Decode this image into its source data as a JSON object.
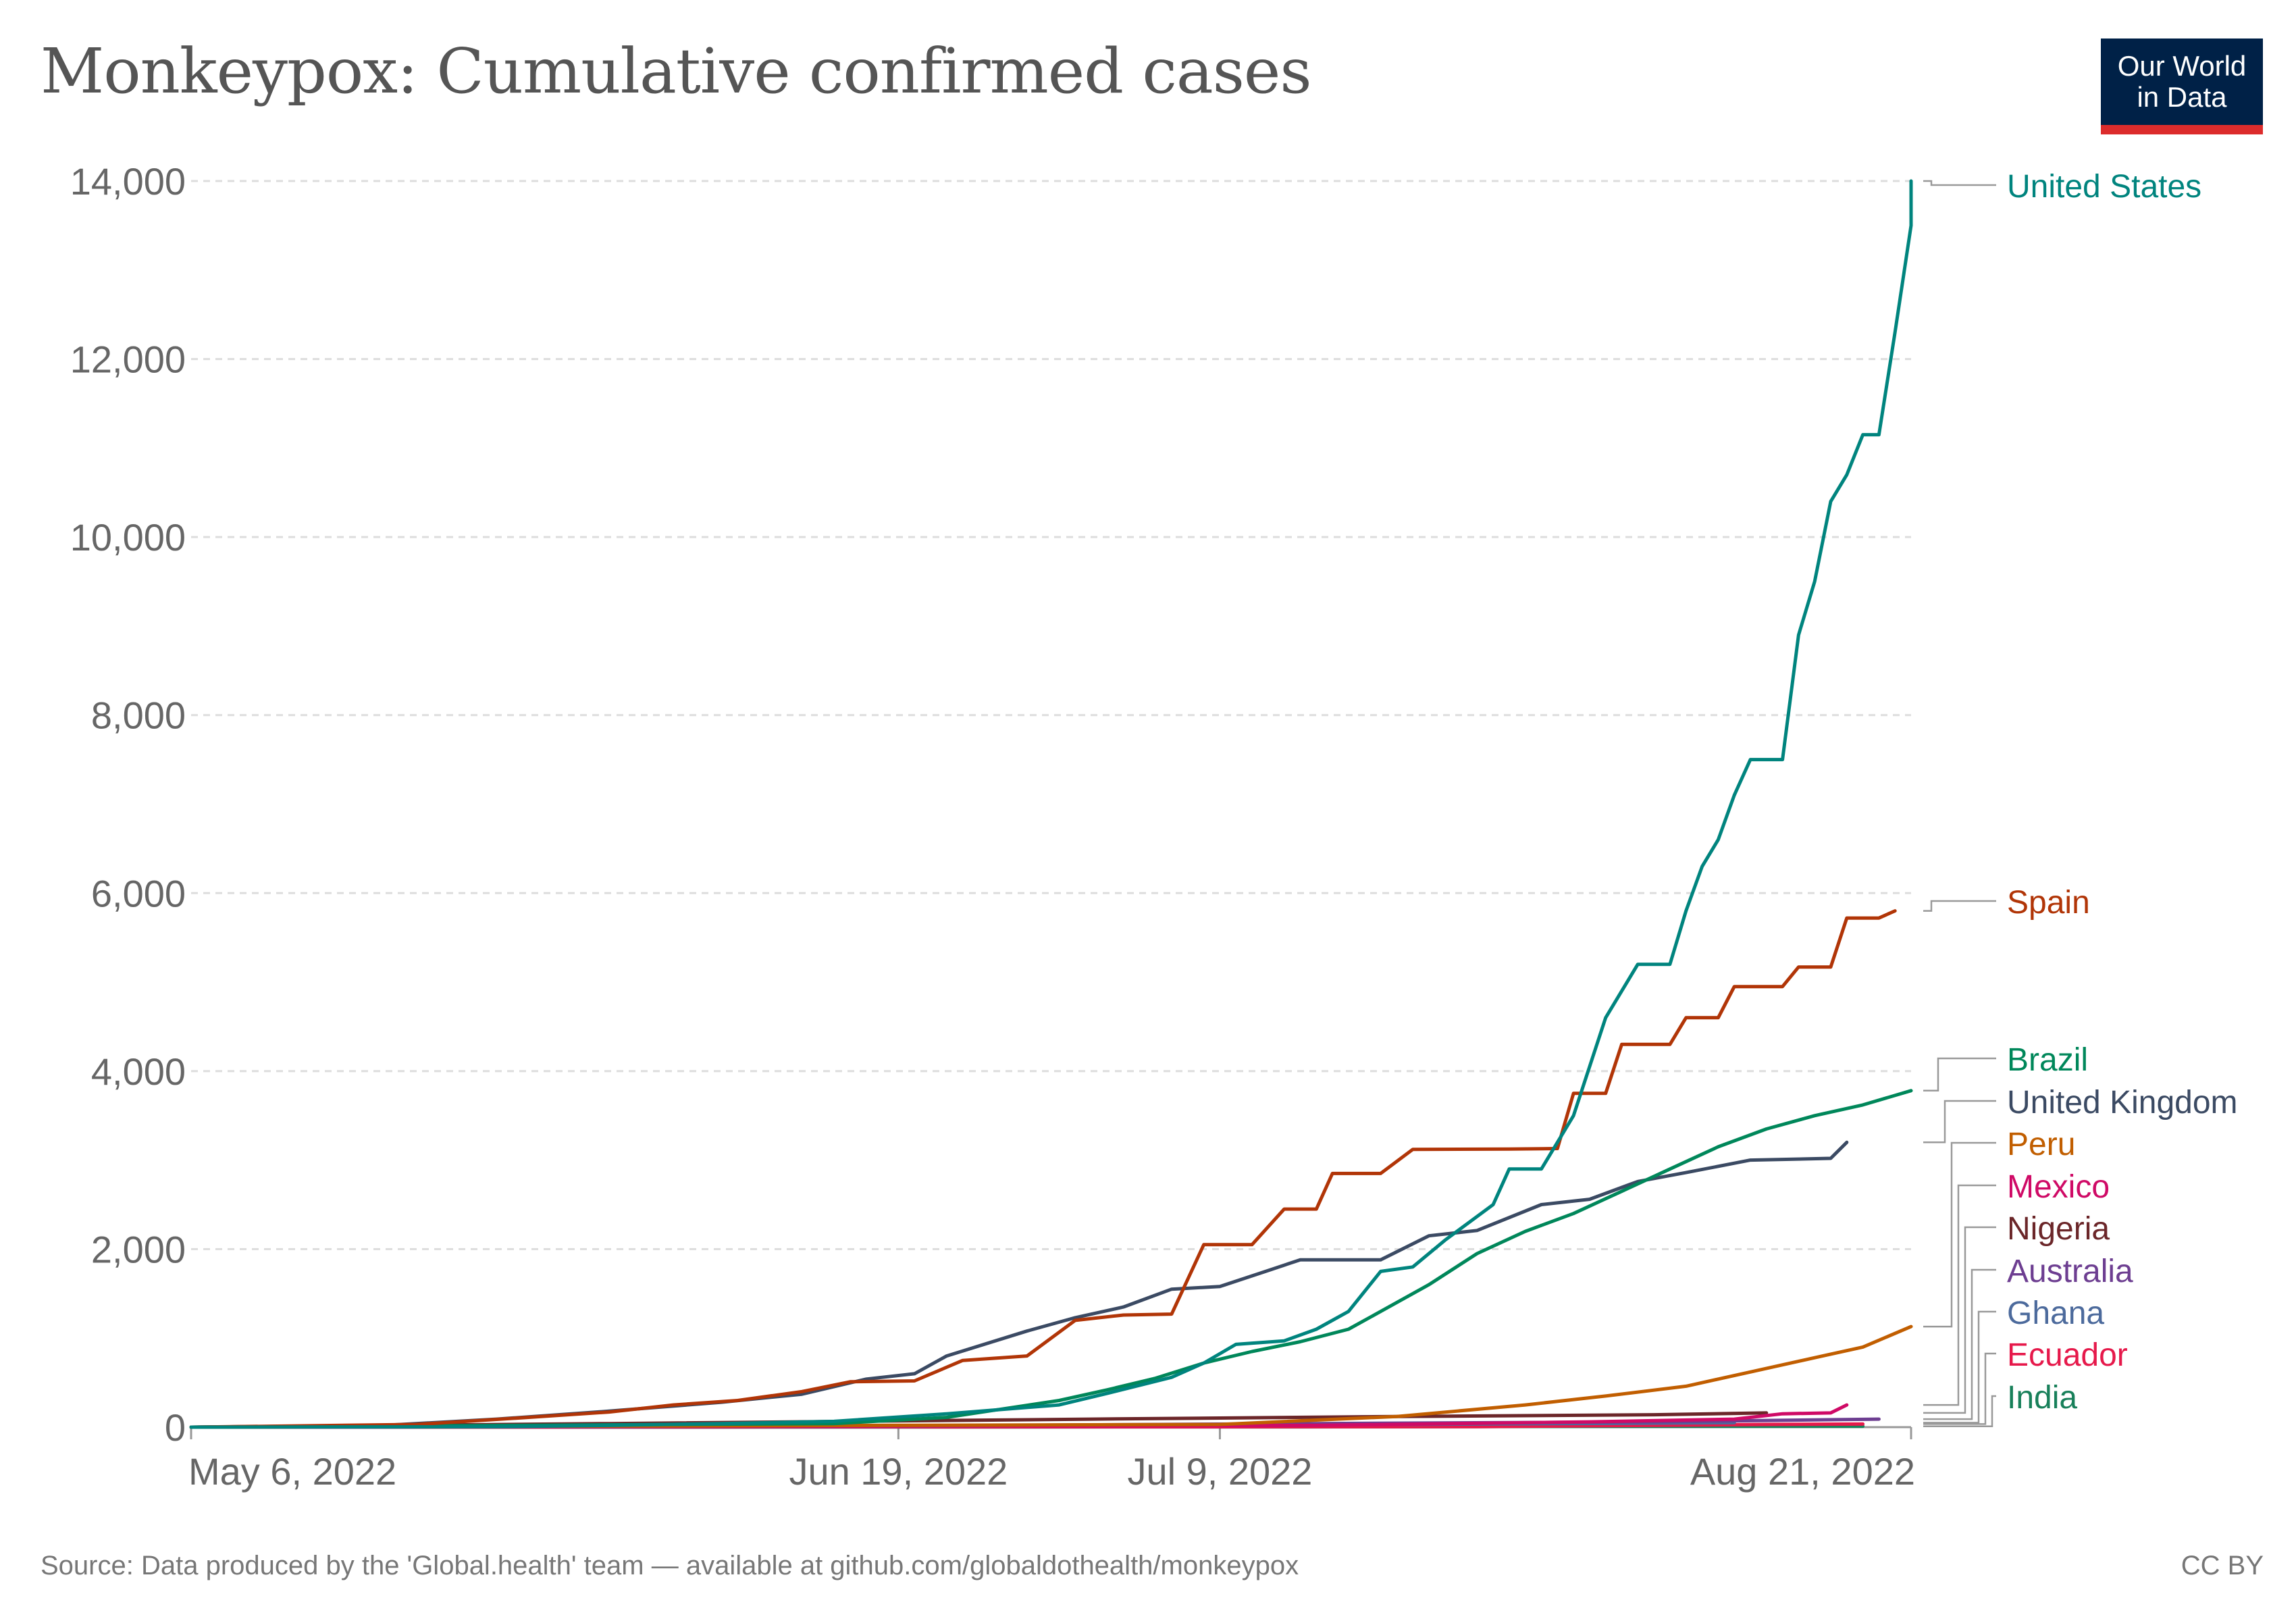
{
  "header": {
    "title": "Monkeypox: Cumulative confirmed cases",
    "logo_line1": "Our World",
    "logo_line2": "in Data"
  },
  "footer": {
    "source": "Source: Data produced by the 'Global.health' team — available at github.com/globaldothealth/monkeypox",
    "license": "CC BY"
  },
  "colors": {
    "logo_background": "#002147",
    "logo_accent": "#dc2c2c",
    "grid": "#dddddd",
    "axis_text": "#666666"
  },
  "chart_data": {
    "type": "line",
    "title": "Monkeypox: Cumulative confirmed cases",
    "xlabel": "",
    "ylabel": "",
    "x_type": "date",
    "xlim": [
      "2022-05-06",
      "2022-08-21"
    ],
    "x_ticks": [
      {
        "date": "2022-05-06",
        "label": "May 6, 2022"
      },
      {
        "date": "2022-06-19",
        "label": "Jun 19, 2022"
      },
      {
        "date": "2022-07-09",
        "label": "Jul 9, 2022"
      },
      {
        "date": "2022-08-21",
        "label": "Aug 21, 2022"
      }
    ],
    "ylim": [
      0,
      14000
    ],
    "y_ticks": [
      {
        "value": 0,
        "label": "0"
      },
      {
        "value": 2000,
        "label": "2,000"
      },
      {
        "value": 4000,
        "label": "4,000"
      },
      {
        "value": 6000,
        "label": "6,000"
      },
      {
        "value": 8000,
        "label": "8,000"
      },
      {
        "value": 10000,
        "label": "10,000"
      },
      {
        "value": 12000,
        "label": "12,000"
      },
      {
        "value": 14000,
        "label": "14,000"
      }
    ],
    "grid": "horizontal dashed",
    "legend": "right (line end labels)",
    "series": [
      {
        "name": "United States",
        "color": "#00847e",
        "points": [
          [
            "2022-05-06",
            0
          ],
          [
            "2022-05-25",
            5
          ],
          [
            "2022-06-01",
            20
          ],
          [
            "2022-06-08",
            40
          ],
          [
            "2022-06-15",
            65
          ],
          [
            "2022-06-22",
            150
          ],
          [
            "2022-06-29",
            250
          ],
          [
            "2022-07-02",
            380
          ],
          [
            "2022-07-06",
            560
          ],
          [
            "2022-07-08",
            720
          ],
          [
            "2022-07-10",
            930
          ],
          [
            "2022-07-13",
            970
          ],
          [
            "2022-07-15",
            1100
          ],
          [
            "2022-07-17",
            1300
          ],
          [
            "2022-07-19",
            1750
          ],
          [
            "2022-07-21",
            1800
          ],
          [
            "2022-07-23",
            2100
          ],
          [
            "2022-07-26",
            2500
          ],
          [
            "2022-07-27",
            2900
          ],
          [
            "2022-07-29",
            2900
          ],
          [
            "2022-07-31",
            3500
          ],
          [
            "2022-08-02",
            4600
          ],
          [
            "2022-08-04",
            5200
          ],
          [
            "2022-08-06",
            5200
          ],
          [
            "2022-08-07",
            5800
          ],
          [
            "2022-08-08",
            6300
          ],
          [
            "2022-08-09",
            6600
          ],
          [
            "2022-08-10",
            7100
          ],
          [
            "2022-08-11",
            7500
          ],
          [
            "2022-08-13",
            7500
          ],
          [
            "2022-08-14",
            8900
          ],
          [
            "2022-08-15",
            9500
          ],
          [
            "2022-08-16",
            10400
          ],
          [
            "2022-08-17",
            10700
          ],
          [
            "2022-08-18",
            11150
          ],
          [
            "2022-08-19",
            11150
          ],
          [
            "2022-08-20",
            12300
          ],
          [
            "2022-08-21",
            13500
          ],
          [
            "2022-08-21",
            14000
          ]
        ]
      },
      {
        "name": "Spain",
        "color": "#b13507",
        "points": [
          [
            "2022-05-06",
            0
          ],
          [
            "2022-05-20",
            30
          ],
          [
            "2022-05-27",
            110
          ],
          [
            "2022-06-01",
            170
          ],
          [
            "2022-06-05",
            250
          ],
          [
            "2022-06-09",
            300
          ],
          [
            "2022-06-13",
            400
          ],
          [
            "2022-06-16",
            510
          ],
          [
            "2022-06-20",
            520
          ],
          [
            "2022-06-23",
            750
          ],
          [
            "2022-06-27",
            800
          ],
          [
            "2022-06-30",
            1200
          ],
          [
            "2022-07-03",
            1260
          ],
          [
            "2022-07-06",
            1270
          ],
          [
            "2022-07-08",
            2050
          ],
          [
            "2022-07-11",
            2050
          ],
          [
            "2022-07-13",
            2450
          ],
          [
            "2022-07-15",
            2450
          ],
          [
            "2022-07-16",
            2850
          ],
          [
            "2022-07-19",
            2850
          ],
          [
            "2022-07-21",
            3120
          ],
          [
            "2022-07-27",
            3125
          ],
          [
            "2022-07-30",
            3130
          ],
          [
            "2022-07-31",
            3750
          ],
          [
            "2022-08-02",
            3750
          ],
          [
            "2022-08-03",
            4300
          ],
          [
            "2022-08-06",
            4300
          ],
          [
            "2022-08-07",
            4600
          ],
          [
            "2022-08-09",
            4600
          ],
          [
            "2022-08-10",
            4950
          ],
          [
            "2022-08-13",
            4950
          ],
          [
            "2022-08-14",
            5170
          ],
          [
            "2022-08-16",
            5170
          ],
          [
            "2022-08-17",
            5720
          ],
          [
            "2022-08-19",
            5720
          ],
          [
            "2022-08-20",
            5800
          ]
        ]
      },
      {
        "name": "Brazil",
        "color": "#00875a",
        "points": [
          [
            "2022-05-06",
            0
          ],
          [
            "2022-06-15",
            40
          ],
          [
            "2022-06-22",
            110
          ],
          [
            "2022-06-29",
            300
          ],
          [
            "2022-07-02",
            420
          ],
          [
            "2022-07-05",
            550
          ],
          [
            "2022-07-08",
            720
          ],
          [
            "2022-07-11",
            850
          ],
          [
            "2022-07-14",
            960
          ],
          [
            "2022-07-17",
            1100
          ],
          [
            "2022-07-19",
            1300
          ],
          [
            "2022-07-22",
            1600
          ],
          [
            "2022-07-25",
            1950
          ],
          [
            "2022-07-28",
            2200
          ],
          [
            "2022-07-31",
            2400
          ],
          [
            "2022-08-03",
            2650
          ],
          [
            "2022-08-06",
            2900
          ],
          [
            "2022-08-09",
            3150
          ],
          [
            "2022-08-12",
            3350
          ],
          [
            "2022-08-15",
            3500
          ],
          [
            "2022-08-18",
            3620
          ],
          [
            "2022-08-21",
            3780
          ]
        ]
      },
      {
        "name": "United Kingdom",
        "color": "#3b4a63",
        "points": [
          [
            "2022-05-06",
            0
          ],
          [
            "2022-05-18",
            20
          ],
          [
            "2022-05-25",
            90
          ],
          [
            "2022-06-01",
            180
          ],
          [
            "2022-06-08",
            280
          ],
          [
            "2022-06-13",
            370
          ],
          [
            "2022-06-17",
            540
          ],
          [
            "2022-06-20",
            600
          ],
          [
            "2022-06-22",
            800
          ],
          [
            "2022-06-27",
            1080
          ],
          [
            "2022-06-30",
            1230
          ],
          [
            "2022-07-03",
            1350
          ],
          [
            "2022-07-06",
            1550
          ],
          [
            "2022-07-09",
            1580
          ],
          [
            "2022-07-12",
            1760
          ],
          [
            "2022-07-14",
            1880
          ],
          [
            "2022-07-19",
            1880
          ],
          [
            "2022-07-22",
            2150
          ],
          [
            "2022-07-25",
            2210
          ],
          [
            "2022-07-29",
            2500
          ],
          [
            "2022-08-01",
            2560
          ],
          [
            "2022-08-04",
            2760
          ],
          [
            "2022-08-07",
            2860
          ],
          [
            "2022-08-11",
            3000
          ],
          [
            "2022-08-16",
            3020
          ],
          [
            "2022-08-17",
            3200
          ]
        ]
      },
      {
        "name": "Peru",
        "color": "#c15e00",
        "points": [
          [
            "2022-05-06",
            0
          ],
          [
            "2022-07-09",
            30
          ],
          [
            "2022-07-20",
            120
          ],
          [
            "2022-07-28",
            250
          ],
          [
            "2022-08-02",
            350
          ],
          [
            "2022-08-07",
            460
          ],
          [
            "2022-08-11",
            620
          ],
          [
            "2022-08-15",
            780
          ],
          [
            "2022-08-18",
            900
          ],
          [
            "2022-08-21",
            1130
          ]
        ]
      },
      {
        "name": "Mexico",
        "color": "#cf0a66",
        "points": [
          [
            "2022-05-06",
            0
          ],
          [
            "2022-07-15",
            20
          ],
          [
            "2022-08-01",
            60
          ],
          [
            "2022-08-10",
            90
          ],
          [
            "2022-08-13",
            150
          ],
          [
            "2022-08-16",
            160
          ],
          [
            "2022-08-17",
            250
          ]
        ]
      },
      {
        "name": "Nigeria",
        "color": "#6b2629",
        "points": [
          [
            "2022-05-06",
            0
          ],
          [
            "2022-06-01",
            40
          ],
          [
            "2022-07-01",
            90
          ],
          [
            "2022-07-20",
            120
          ],
          [
            "2022-08-05",
            140
          ],
          [
            "2022-08-12",
            160
          ]
        ]
      },
      {
        "name": "Australia",
        "color": "#6d3e91",
        "points": [
          [
            "2022-05-06",
            0
          ],
          [
            "2022-06-15",
            10
          ],
          [
            "2022-07-15",
            40
          ],
          [
            "2022-08-05",
            60
          ],
          [
            "2022-08-19",
            90
          ]
        ]
      },
      {
        "name": "Ghana",
        "color": "#4c6a9c",
        "points": [
          [
            "2022-05-06",
            0
          ],
          [
            "2022-06-20",
            10
          ],
          [
            "2022-07-20",
            30
          ],
          [
            "2022-08-10",
            50
          ]
        ]
      },
      {
        "name": "Ecuador",
        "color": "#e6194b",
        "points": [
          [
            "2022-05-06",
            0
          ],
          [
            "2022-07-25",
            5
          ],
          [
            "2022-08-12",
            30
          ],
          [
            "2022-08-18",
            35
          ]
        ]
      },
      {
        "name": "India",
        "color": "#18805a",
        "points": [
          [
            "2022-05-06",
            0
          ],
          [
            "2022-07-14",
            3
          ],
          [
            "2022-08-01",
            8
          ],
          [
            "2022-08-18",
            10
          ]
        ]
      }
    ]
  }
}
